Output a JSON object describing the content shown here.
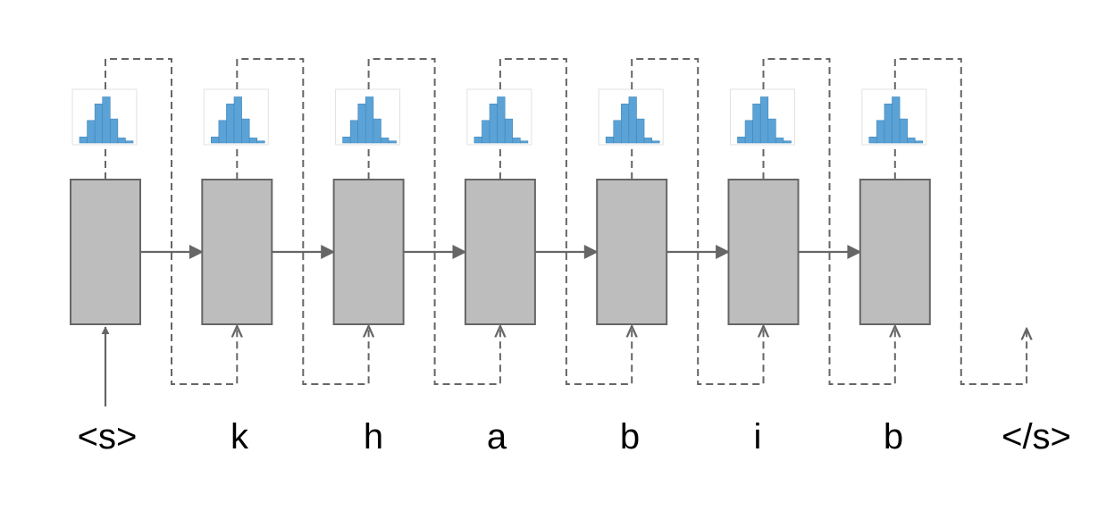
{
  "tokens": [
    "<s>",
    "k",
    "h",
    "a",
    "b",
    "i",
    "b",
    "</s>"
  ]
}
